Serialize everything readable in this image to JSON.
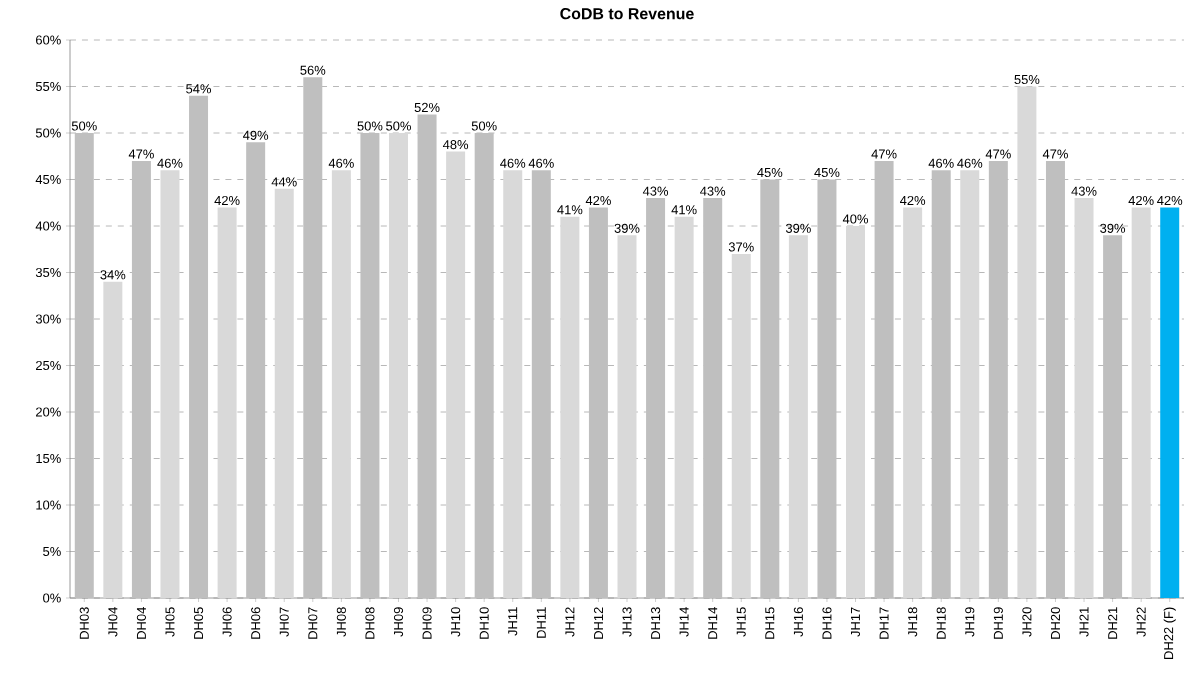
{
  "chart_data": {
    "type": "bar",
    "title": "CoDB to Revenue",
    "categories": [
      "DH03",
      "JH04",
      "DH04",
      "JH05",
      "DH05",
      "JH06",
      "DH06",
      "JH07",
      "DH07",
      "JH08",
      "DH08",
      "JH09",
      "DH09",
      "JH10",
      "DH10",
      "JH11",
      "DH11",
      "JH12",
      "DH12",
      "JH13",
      "DH13",
      "JH14",
      "DH14",
      "JH15",
      "DH15",
      "JH16",
      "DH16",
      "JH17",
      "DH17",
      "JH18",
      "DH18",
      "JH19",
      "DH19",
      "JH20",
      "DH20",
      "JH21",
      "DH21",
      "JH22",
      "DH22 (F)"
    ],
    "values": [
      50,
      34,
      47,
      46,
      54,
      42,
      49,
      44,
      56,
      46,
      50,
      50,
      52,
      48,
      50,
      46,
      46,
      41,
      42,
      39,
      43,
      41,
      43,
      37,
      45,
      39,
      45,
      40,
      47,
      42,
      46,
      46,
      47,
      55,
      47,
      43,
      39,
      42,
      42
    ],
    "value_labels": [
      "50%",
      "34%",
      "47%",
      "46%",
      "54%",
      "42%",
      "49%",
      "44%",
      "56%",
      "46%",
      "50%",
      "50%",
      "52%",
      "48%",
      "50%",
      "46%",
      "46%",
      "41%",
      "42%",
      "39%",
      "43%",
      "41%",
      "43%",
      "37%",
      "45%",
      "39%",
      "45%",
      "40%",
      "47%",
      "42%",
      "46%",
      "46%",
      "47%",
      "55%",
      "47%",
      "43%",
      "39%",
      "42%",
      "42%"
    ],
    "colors": [
      "#bfbfbf",
      "#d9d9d9",
      "#bfbfbf",
      "#d9d9d9",
      "#bfbfbf",
      "#d9d9d9",
      "#bfbfbf",
      "#d9d9d9",
      "#bfbfbf",
      "#d9d9d9",
      "#bfbfbf",
      "#d9d9d9",
      "#bfbfbf",
      "#d9d9d9",
      "#bfbfbf",
      "#d9d9d9",
      "#bfbfbf",
      "#d9d9d9",
      "#bfbfbf",
      "#d9d9d9",
      "#bfbfbf",
      "#d9d9d9",
      "#bfbfbf",
      "#d9d9d9",
      "#bfbfbf",
      "#d9d9d9",
      "#bfbfbf",
      "#d9d9d9",
      "#bfbfbf",
      "#d9d9d9",
      "#bfbfbf",
      "#d9d9d9",
      "#bfbfbf",
      "#d9d9d9",
      "#bfbfbf",
      "#d9d9d9",
      "#bfbfbf",
      "#d9d9d9",
      "#00b0f0"
    ],
    "ylim": [
      0,
      60
    ],
    "yticks": [
      {
        "value": 0,
        "label": "0%"
      },
      {
        "value": 5,
        "label": "5%"
      },
      {
        "value": 10,
        "label": "10%"
      },
      {
        "value": 15,
        "label": "15%"
      },
      {
        "value": 20,
        "label": "20%"
      },
      {
        "value": 25,
        "label": "25%"
      },
      {
        "value": 30,
        "label": "30%"
      },
      {
        "value": 35,
        "label": "35%"
      },
      {
        "value": 40,
        "label": "40%"
      },
      {
        "value": 45,
        "label": "45%"
      },
      {
        "value": 50,
        "label": "50%"
      },
      {
        "value": 55,
        "label": "55%"
      },
      {
        "value": 60,
        "label": "60%"
      }
    ],
    "grid": "y"
  }
}
